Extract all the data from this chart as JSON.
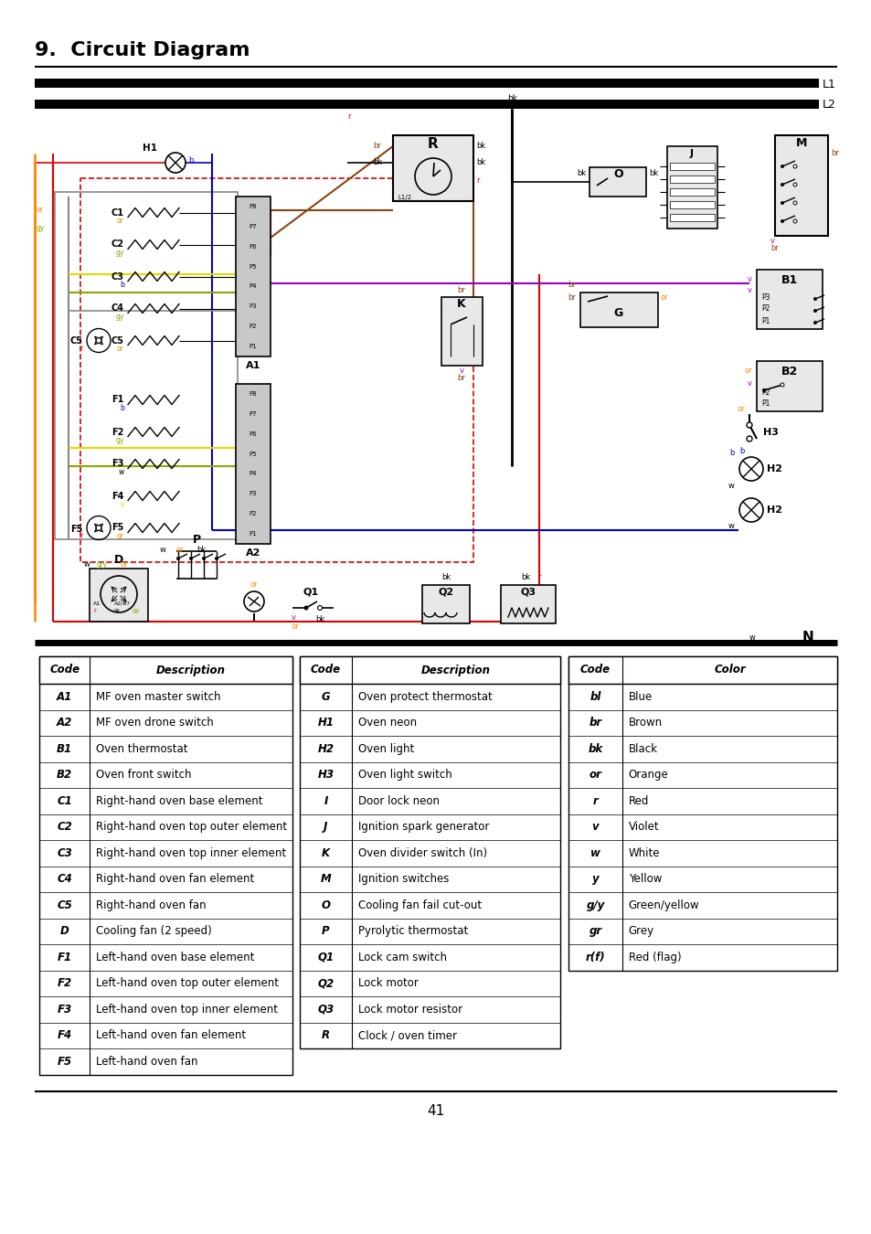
{
  "title": "9.  Circuit Diagram",
  "page_number": "41",
  "L1_label": "L1",
  "L2_label": "L2",
  "N_label": "N",
  "table1_headers": [
    "Code",
    "Description"
  ],
  "table1_rows": [
    [
      "A1",
      "MF oven master switch"
    ],
    [
      "A2",
      "MF oven drone switch"
    ],
    [
      "B1",
      "Oven thermostat"
    ],
    [
      "B2",
      "Oven front switch"
    ],
    [
      "C1",
      "Right-hand oven base element"
    ],
    [
      "C2",
      "Right-hand oven top outer element"
    ],
    [
      "C3",
      "Right-hand oven top inner element"
    ],
    [
      "C4",
      "Right-hand oven fan element"
    ],
    [
      "C5",
      "Right-hand oven fan"
    ],
    [
      "D",
      "Cooling fan (2 speed)"
    ],
    [
      "F1",
      "Left-hand oven base element"
    ],
    [
      "F2",
      "Left-hand oven top outer element"
    ],
    [
      "F3",
      "Left-hand oven top inner element"
    ],
    [
      "F4",
      "Left-hand oven fan element"
    ],
    [
      "F5",
      "Left-hand oven fan"
    ]
  ],
  "table2_headers": [
    "Code",
    "Description"
  ],
  "table2_rows": [
    [
      "G",
      "Oven protect thermostat"
    ],
    [
      "H1",
      "Oven neon"
    ],
    [
      "H2",
      "Oven light"
    ],
    [
      "H3",
      "Oven light switch"
    ],
    [
      "I",
      "Door lock neon"
    ],
    [
      "J",
      "Ignition spark generator"
    ],
    [
      "K",
      "Oven divider switch (In)"
    ],
    [
      "M",
      "Ignition switches"
    ],
    [
      "O",
      "Cooling fan fail cut-out"
    ],
    [
      "P",
      "Pyrolytic thermostat"
    ],
    [
      "Q1",
      "Lock cam switch"
    ],
    [
      "Q2",
      "Lock motor"
    ],
    [
      "Q3",
      "Lock motor resistor"
    ],
    [
      "R",
      "Clock / oven timer"
    ]
  ],
  "table3_headers": [
    "Code",
    "Color"
  ],
  "table3_rows": [
    [
      "bl",
      "Blue"
    ],
    [
      "br",
      "Brown"
    ],
    [
      "bk",
      "Black"
    ],
    [
      "or",
      "Orange"
    ],
    [
      "r",
      "Red"
    ],
    [
      "v",
      "Violet"
    ],
    [
      "w",
      "White"
    ],
    [
      "y",
      "Yellow"
    ],
    [
      "g/y",
      "Green/yellow"
    ],
    [
      "gr",
      "Grey"
    ],
    [
      "r(f)",
      "Red (flag)"
    ]
  ],
  "colors": {
    "RED": "#dd0000",
    "BLUE": "#0000cc",
    "ORANGE": "#ff8800",
    "BROWN": "#8B4513",
    "VIOLET": "#9900cc",
    "YELLOW": "#dddd00",
    "GREEN_YELLOW": "#88aa00",
    "GRAY": "#888888",
    "BLACK": "#000000",
    "WHITE": "#ffffff",
    "LIGHT_GRAY": "#cccccc",
    "BOX_GRAY": "#e0e0e0"
  }
}
